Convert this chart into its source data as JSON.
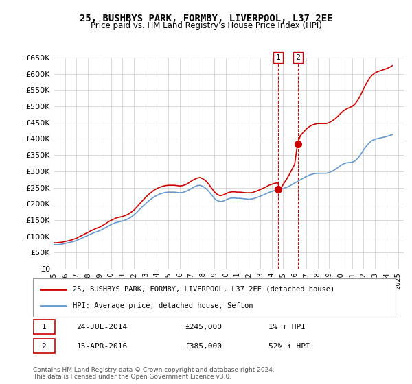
{
  "title": "25, BUSHBYS PARK, FORMBY, LIVERPOOL, L37 2EE",
  "subtitle": "Price paid vs. HM Land Registry's House Price Index (HPI)",
  "ylim": [
    0,
    650000
  ],
  "yticks": [
    0,
    50000,
    100000,
    150000,
    200000,
    250000,
    300000,
    350000,
    400000,
    450000,
    500000,
    550000,
    600000,
    650000
  ],
  "ytick_labels": [
    "£0",
    "£50K",
    "£100K",
    "£150K",
    "£200K",
    "£250K",
    "£300K",
    "£350K",
    "£400K",
    "£450K",
    "£500K",
    "£550K",
    "£600K",
    "£650K"
  ],
  "xlim_start": 1995.0,
  "xlim_end": 2025.5,
  "xtick_years": [
    1995,
    1996,
    1997,
    1998,
    1999,
    2000,
    2001,
    2002,
    2003,
    2004,
    2005,
    2006,
    2007,
    2008,
    2009,
    2010,
    2011,
    2012,
    2013,
    2014,
    2015,
    2016,
    2017,
    2018,
    2019,
    2020,
    2021,
    2022,
    2023,
    2024,
    2025
  ],
  "legend_line1": "25, BUSHBYS PARK, FORMBY, LIVERPOOL, L37 2EE (detached house)",
  "legend_line2": "HPI: Average price, detached house, Sefton",
  "sale1_label": "1",
  "sale1_date": "24-JUL-2014",
  "sale1_price": "£245,000",
  "sale1_hpi": "1% ↑ HPI",
  "sale1_year": 2014.56,
  "sale1_value": 245000,
  "sale2_label": "2",
  "sale2_date": "15-APR-2016",
  "sale2_price": "£385,000",
  "sale2_hpi": "52% ↑ HPI",
  "sale2_year": 2016.29,
  "sale2_value": 385000,
  "line_color_red": "#cc0000",
  "line_color_blue": "#6699cc",
  "marker_color": "#cc0000",
  "vline_color": "#cc0000",
  "footer": "Contains HM Land Registry data © Crown copyright and database right 2024.\nThis data is licensed under the Open Government Licence v3.0.",
  "hpi_x": [
    1995.0,
    1995.25,
    1995.5,
    1995.75,
    1996.0,
    1996.25,
    1996.5,
    1996.75,
    1997.0,
    1997.25,
    1997.5,
    1997.75,
    1998.0,
    1998.25,
    1998.5,
    1998.75,
    1999.0,
    1999.25,
    1999.5,
    1999.75,
    2000.0,
    2000.25,
    2000.5,
    2000.75,
    2001.0,
    2001.25,
    2001.5,
    2001.75,
    2002.0,
    2002.25,
    2002.5,
    2002.75,
    2003.0,
    2003.25,
    2003.5,
    2003.75,
    2004.0,
    2004.25,
    2004.5,
    2004.75,
    2005.0,
    2005.25,
    2005.5,
    2005.75,
    2006.0,
    2006.25,
    2006.5,
    2006.75,
    2007.0,
    2007.25,
    2007.5,
    2007.75,
    2008.0,
    2008.25,
    2008.5,
    2008.75,
    2009.0,
    2009.25,
    2009.5,
    2009.75,
    2010.0,
    2010.25,
    2010.5,
    2010.75,
    2011.0,
    2011.25,
    2011.5,
    2011.75,
    2012.0,
    2012.25,
    2012.5,
    2012.75,
    2013.0,
    2013.25,
    2013.5,
    2013.75,
    2014.0,
    2014.25,
    2014.5,
    2014.75,
    2015.0,
    2015.25,
    2015.5,
    2015.75,
    2016.0,
    2016.25,
    2016.5,
    2016.75,
    2017.0,
    2017.25,
    2017.5,
    2017.75,
    2018.0,
    2018.25,
    2018.5,
    2018.75,
    2019.0,
    2019.25,
    2019.5,
    2019.75,
    2020.0,
    2020.25,
    2020.5,
    2020.75,
    2021.0,
    2021.25,
    2021.5,
    2021.75,
    2022.0,
    2022.25,
    2022.5,
    2022.75,
    2023.0,
    2023.25,
    2023.5,
    2023.75,
    2024.0,
    2024.25,
    2024.5
  ],
  "hpi_y": [
    75000,
    74000,
    74500,
    76000,
    78000,
    80000,
    82000,
    84000,
    87000,
    91000,
    95000,
    99000,
    103000,
    107000,
    111000,
    114000,
    117000,
    121000,
    126000,
    131000,
    136000,
    140000,
    143000,
    145000,
    147000,
    150000,
    154000,
    159000,
    166000,
    174000,
    183000,
    192000,
    200000,
    208000,
    215000,
    221000,
    226000,
    230000,
    233000,
    235000,
    236000,
    236000,
    236000,
    235000,
    234000,
    235000,
    238000,
    242000,
    247000,
    252000,
    256000,
    257000,
    254000,
    248000,
    239000,
    228000,
    217000,
    210000,
    207000,
    208000,
    212000,
    216000,
    218000,
    218000,
    217000,
    217000,
    216000,
    215000,
    214000,
    215000,
    217000,
    220000,
    223000,
    227000,
    231000,
    235000,
    238000,
    241000,
    243000,
    245000,
    247000,
    250000,
    254000,
    259000,
    264000,
    269000,
    274000,
    279000,
    284000,
    288000,
    291000,
    293000,
    294000,
    294000,
    294000,
    294000,
    296000,
    300000,
    305000,
    311000,
    318000,
    323000,
    326000,
    327000,
    328000,
    332000,
    340000,
    352000,
    366000,
    378000,
    388000,
    395000,
    399000,
    401000,
    403000,
    405000,
    407000,
    410000,
    413000
  ],
  "red_x": [
    1995.0,
    1995.25,
    1995.5,
    1995.75,
    1996.0,
    1996.25,
    1996.5,
    1996.75,
    1997.0,
    1997.25,
    1997.5,
    1997.75,
    1998.0,
    1998.25,
    1998.5,
    1998.75,
    1999.0,
    1999.25,
    1999.5,
    1999.75,
    2000.0,
    2000.25,
    2000.5,
    2000.75,
    2001.0,
    2001.25,
    2001.5,
    2001.75,
    2002.0,
    2002.25,
    2002.5,
    2002.75,
    2003.0,
    2003.25,
    2003.5,
    2003.75,
    2004.0,
    2004.25,
    2004.5,
    2004.75,
    2005.0,
    2005.25,
    2005.5,
    2005.75,
    2006.0,
    2006.25,
    2006.5,
    2006.75,
    2007.0,
    2007.25,
    2007.5,
    2007.75,
    2008.0,
    2008.25,
    2008.5,
    2008.75,
    2009.0,
    2009.25,
    2009.5,
    2009.75,
    2010.0,
    2010.25,
    2010.5,
    2010.75,
    2011.0,
    2011.25,
    2011.5,
    2011.75,
    2012.0,
    2012.25,
    2012.5,
    2012.75,
    2013.0,
    2013.25,
    2013.5,
    2013.75,
    2014.0,
    2014.25,
    2014.5,
    2014.75,
    2015.0,
    2015.25,
    2015.5,
    2015.75,
    2016.0,
    2016.25,
    2016.5,
    2016.75,
    2017.0,
    2017.25,
    2017.5,
    2017.75,
    2018.0,
    2018.25,
    2018.5,
    2018.75,
    2019.0,
    2019.25,
    2019.5,
    2019.75,
    2020.0,
    2020.25,
    2020.5,
    2020.75,
    2021.0,
    2021.25,
    2021.5,
    2021.75,
    2022.0,
    2022.25,
    2022.5,
    2022.75,
    2023.0,
    2023.25,
    2023.5,
    2023.75,
    2024.0,
    2024.25,
    2024.5
  ],
  "red_y": [
    80000,
    80000,
    81000,
    82000,
    84000,
    86000,
    88000,
    91000,
    94000,
    99000,
    103000,
    108000,
    112000,
    117000,
    121000,
    125000,
    128000,
    133000,
    138000,
    144000,
    149000,
    153000,
    157000,
    159000,
    161000,
    164000,
    168000,
    174000,
    181000,
    190000,
    200000,
    210000,
    219000,
    228000,
    235000,
    242000,
    247000,
    251000,
    254000,
    256000,
    257000,
    257000,
    257000,
    256000,
    255000,
    256000,
    259000,
    264000,
    270000,
    275000,
    279000,
    281000,
    277000,
    271000,
    261000,
    249000,
    237000,
    229000,
    225000,
    227000,
    231000,
    235000,
    237000,
    237000,
    236000,
    236000,
    235000,
    234000,
    234000,
    234000,
    237000,
    240000,
    244000,
    248000,
    252000,
    257000,
    260000,
    263000,
    265000,
    245000,
    260000,
    273000,
    288000,
    305000,
    322000,
    385000,
    410000,
    420000,
    430000,
    437000,
    442000,
    445000,
    447000,
    447000,
    447000,
    447000,
    450000,
    455000,
    461000,
    469000,
    478000,
    486000,
    492000,
    496000,
    500000,
    507000,
    519000,
    535000,
    554000,
    571000,
    586000,
    596000,
    603000,
    607000,
    610000,
    613000,
    616000,
    620000,
    625000
  ]
}
